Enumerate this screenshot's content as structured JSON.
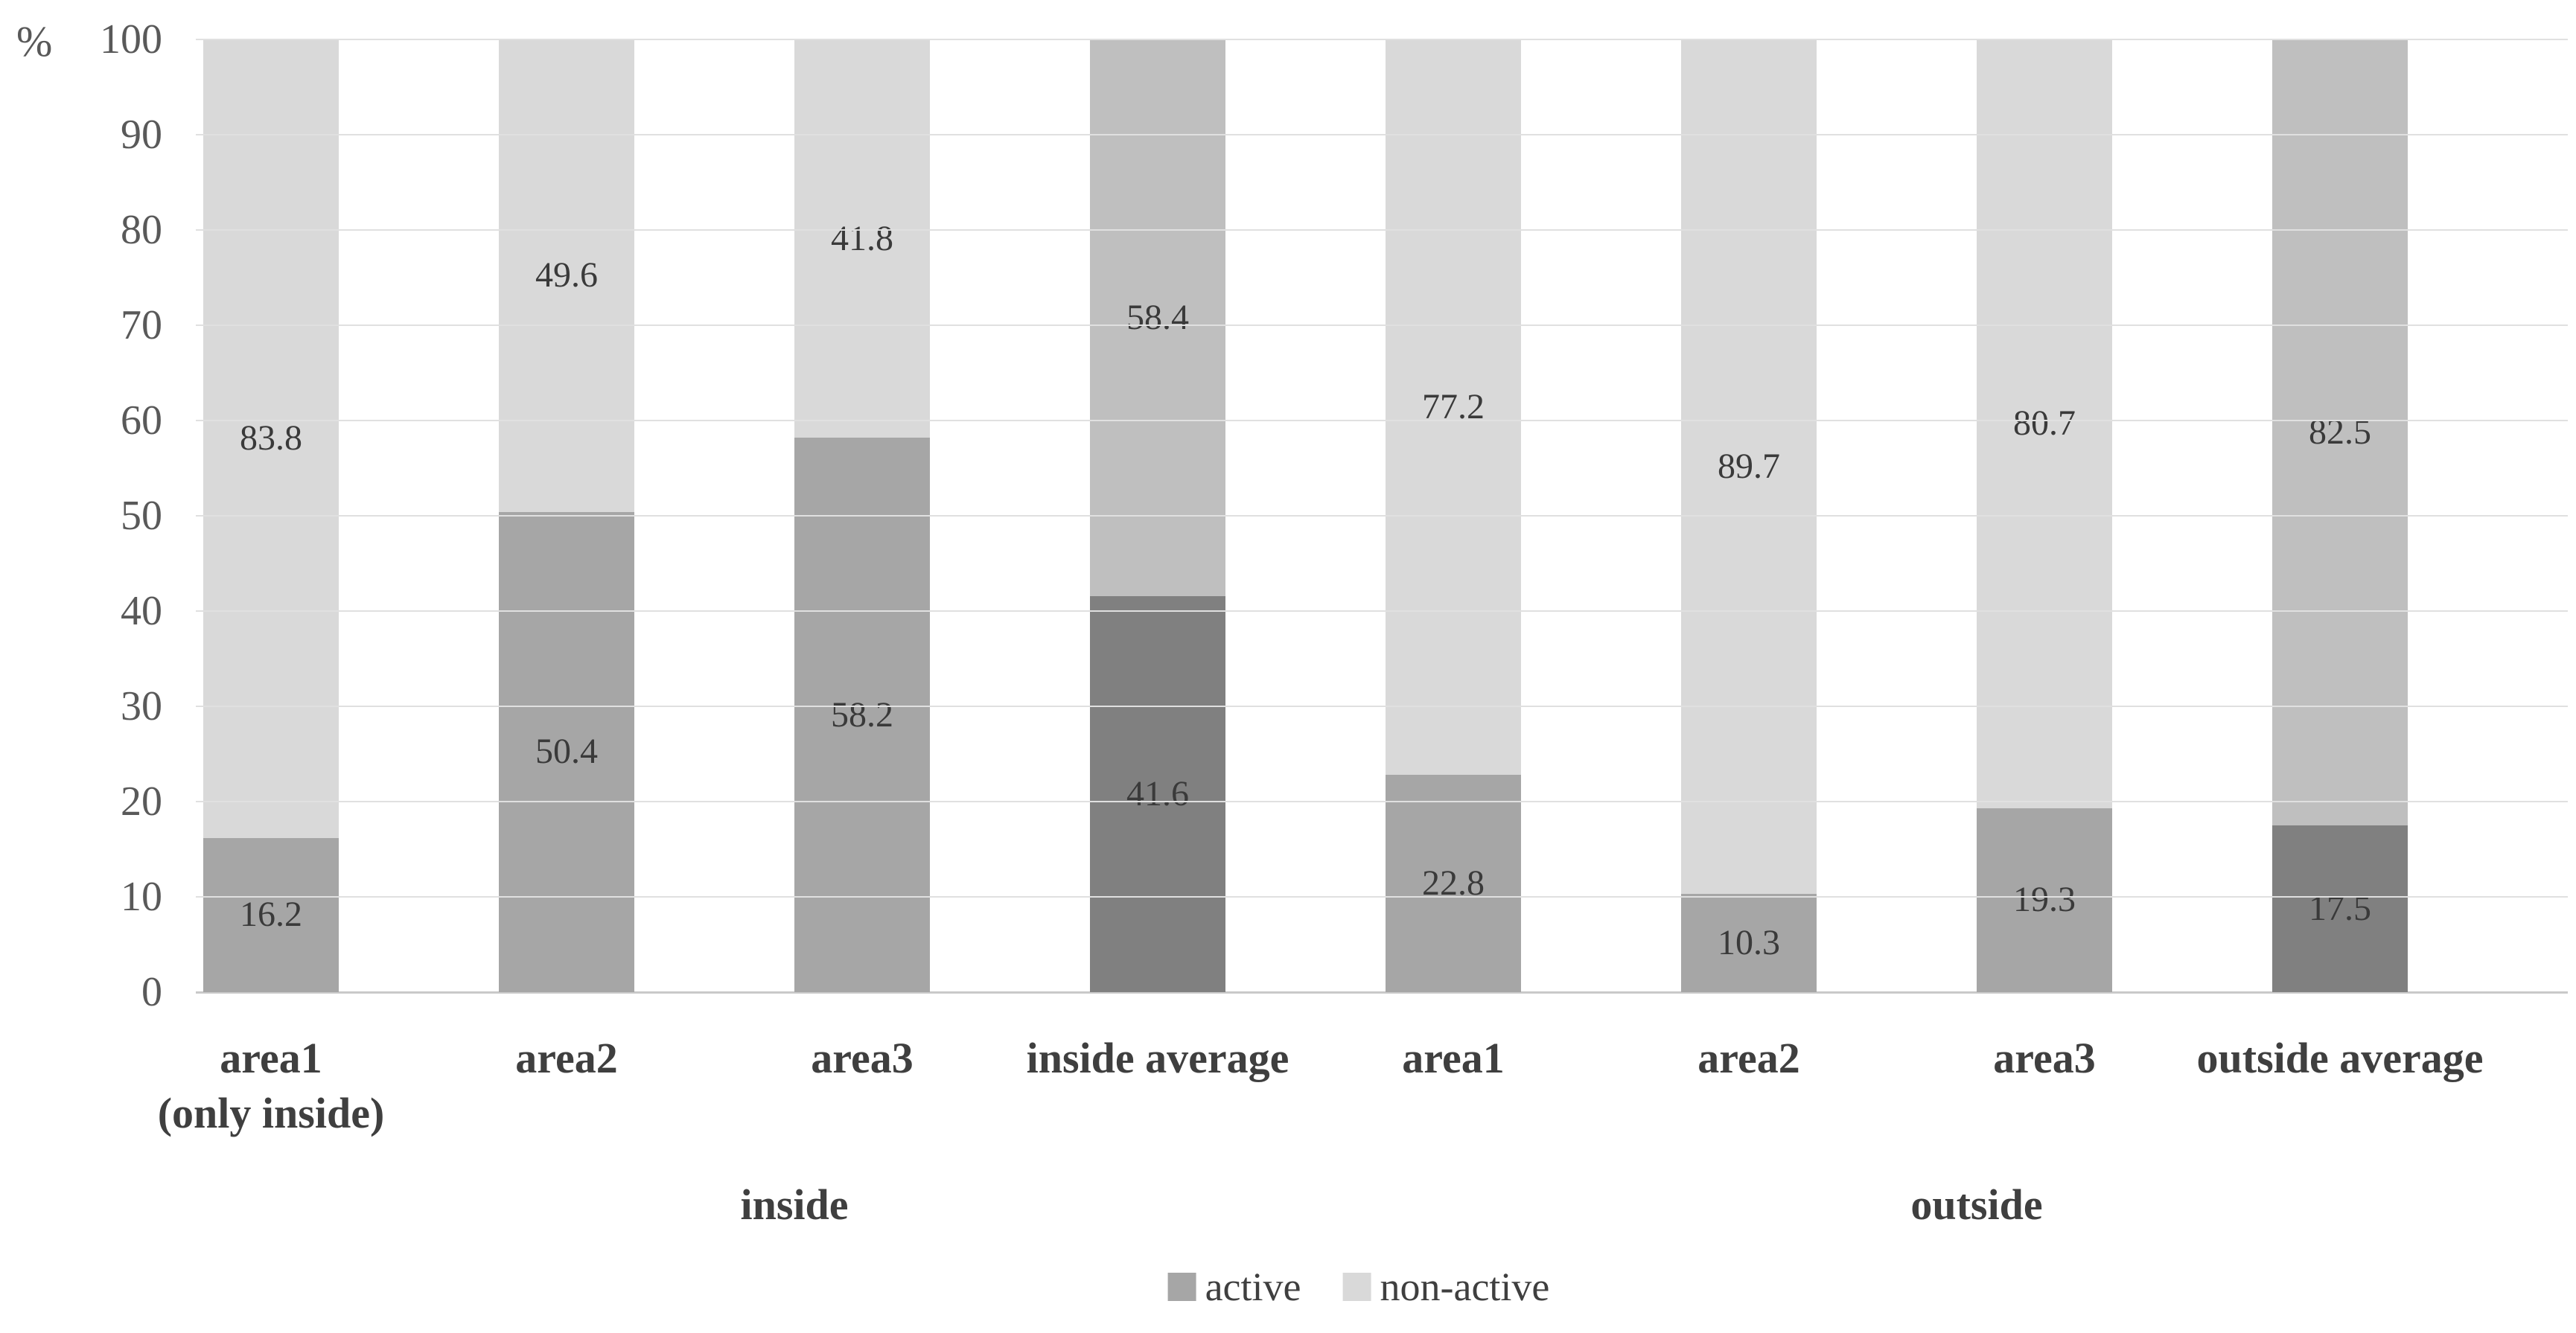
{
  "chart_data": {
    "type": "bar",
    "subtype": "stacked-100-percent-column",
    "title": "",
    "xlabel": "",
    "ylabel": "%",
    "ylim": [
      0,
      100
    ],
    "ytick_step": 10,
    "yticks": [
      0,
      10,
      20,
      30,
      40,
      50,
      60,
      70,
      80,
      90,
      100
    ],
    "grid": true,
    "categories": [
      "area1\n(only inside)",
      "area2",
      "area3",
      "inside average",
      "area1",
      "area2",
      "area3",
      "outside average"
    ],
    "series": [
      {
        "name": "active",
        "values": [
          16.2,
          50.4,
          58.2,
          41.6,
          22.8,
          10.3,
          19.3,
          17.5
        ]
      },
      {
        "name": "non-active",
        "values": [
          83.8,
          49.6,
          41.8,
          58.4,
          77.2,
          89.7,
          80.7,
          82.5
        ]
      }
    ],
    "emphasized_bars": [
      3,
      7
    ],
    "groups": [
      {
        "label": "inside",
        "span": [
          0,
          3
        ]
      },
      {
        "label": "outside",
        "span": [
          4,
          7
        ]
      }
    ],
    "legend": {
      "position": "bottom",
      "entries": [
        {
          "label": "active",
          "color": "#a6a6a6"
        },
        {
          "label": "non-active",
          "color": "#d9d9d9"
        }
      ]
    },
    "colors": {
      "active": "#a6a6a6",
      "non_active": "#d9d9d9",
      "active_avg": "#808080",
      "non_active_avg": "#bfbfbf",
      "gridline": "#e0e0e0",
      "axis_line": "#c9c9c9",
      "tick_text": "#595959",
      "data_label_text": "#3a3a3a",
      "category_text": "#3f3f3f"
    }
  }
}
